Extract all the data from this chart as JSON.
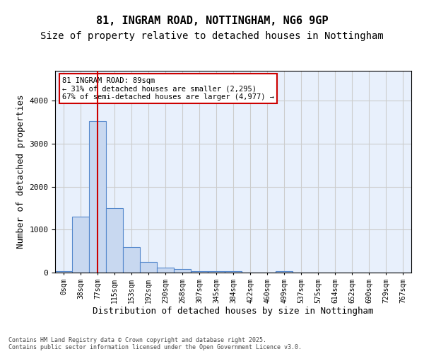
{
  "title_line1": "81, INGRAM ROAD, NOTTINGHAM, NG6 9GP",
  "title_line2": "Size of property relative to detached houses in Nottingham",
  "xlabel": "Distribution of detached houses by size in Nottingham",
  "ylabel": "Number of detached properties",
  "annotation_title": "81 INGRAM ROAD: 89sqm",
  "annotation_line2": "← 31% of detached houses are smaller (2,295)",
  "annotation_line3": "67% of semi-detached houses are larger (4,977) →",
  "vline_x": 2,
  "bar_values": [
    30,
    1300,
    3530,
    1500,
    590,
    240,
    110,
    75,
    40,
    40,
    40,
    0,
    0,
    35,
    0,
    0,
    0,
    0,
    0,
    0,
    0
  ],
  "bar_color": "#c8d8f0",
  "bar_edge_color": "#5588cc",
  "vline_color": "#cc0000",
  "grid_color": "#cccccc",
  "background_color": "#e8f0fc",
  "ylim": [
    0,
    4700
  ],
  "categories": [
    "0sqm",
    "38sqm",
    "77sqm",
    "115sqm",
    "153sqm",
    "192sqm",
    "230sqm",
    "268sqm",
    "307sqm",
    "345sqm",
    "384sqm",
    "422sqm",
    "460sqm",
    "499sqm",
    "537sqm",
    "575sqm",
    "614sqm",
    "652sqm",
    "690sqm",
    "729sqm",
    "767sqm"
  ],
  "footer": "Contains HM Land Registry data © Crown copyright and database right 2025.\nContains public sector information licensed under the Open Government Licence v3.0.",
  "annotation_box_color": "#cc0000",
  "title_fontsize": 11,
  "subtitle_fontsize": 10,
  "tick_fontsize": 7,
  "ylabel_fontsize": 9,
  "xlabel_fontsize": 9
}
